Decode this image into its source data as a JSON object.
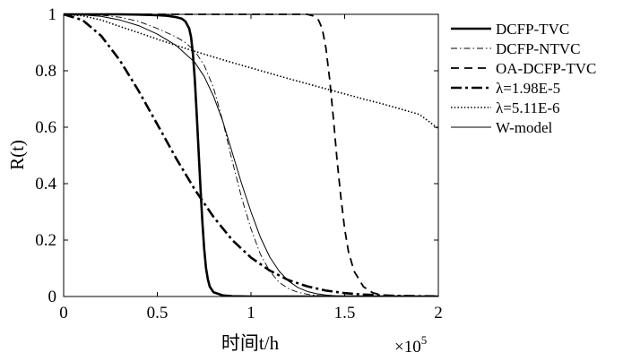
{
  "chart_data": {
    "type": "line",
    "xlabel": "时间t/h",
    "ylabel": "R(t)",
    "x_multiplier_base": "×10",
    "x_multiplier_exp": "5",
    "xlim": [
      0,
      2
    ],
    "ylim": [
      0,
      1
    ],
    "x_ticks": [
      "0",
      "0.5",
      "1",
      "1.5",
      "2"
    ],
    "y_ticks": [
      "0",
      "0.2",
      "0.4",
      "0.6",
      "0.8",
      "1"
    ],
    "legend_position": "outside-right-top",
    "series": [
      {
        "name": "DCFP-TVC",
        "style": "solid-thick",
        "x": [
          0,
          0.1,
          0.2,
          0.3,
          0.4,
          0.5,
          0.55,
          0.6,
          0.63,
          0.65,
          0.67,
          0.68,
          0.69,
          0.7,
          0.71,
          0.72,
          0.73,
          0.74,
          0.75,
          0.76,
          0.77,
          0.78,
          0.8,
          0.85,
          0.9,
          1.0,
          1.2,
          1.5,
          2.0
        ],
        "y": [
          1,
          1,
          1,
          1,
          0.999,
          0.997,
          0.995,
          0.99,
          0.985,
          0.975,
          0.95,
          0.92,
          0.86,
          0.77,
          0.65,
          0.52,
          0.39,
          0.27,
          0.17,
          0.1,
          0.06,
          0.035,
          0.015,
          0.004,
          0.001,
          0,
          0,
          0,
          0
        ]
      },
      {
        "name": "DCFP-NTVC",
        "style": "dashdot-thin",
        "x": [
          0,
          0.1,
          0.2,
          0.3,
          0.4,
          0.5,
          0.6,
          0.65,
          0.7,
          0.75,
          0.8,
          0.85,
          0.9,
          0.95,
          1.0,
          1.05,
          1.1,
          1.15,
          1.2,
          1.25,
          1.3,
          1.35,
          1.4,
          1.5,
          1.6,
          2.0
        ],
        "y": [
          1,
          0.999,
          0.997,
          0.99,
          0.975,
          0.95,
          0.92,
          0.9,
          0.87,
          0.82,
          0.74,
          0.62,
          0.48,
          0.35,
          0.24,
          0.15,
          0.09,
          0.05,
          0.028,
          0.015,
          0.008,
          0.004,
          0.002,
          0.0005,
          0,
          0
        ]
      },
      {
        "name": "OA-DCFP-TVC",
        "style": "dashed",
        "x": [
          0,
          0.2,
          0.4,
          0.6,
          0.8,
          1.0,
          1.2,
          1.3,
          1.33,
          1.36,
          1.38,
          1.4,
          1.42,
          1.44,
          1.46,
          1.48,
          1.5,
          1.52,
          1.55,
          1.6,
          1.65,
          1.7,
          1.75,
          1.8,
          1.9,
          2.0
        ],
        "y": [
          1,
          1,
          1,
          1,
          1,
          1,
          1,
          1,
          0.995,
          0.98,
          0.95,
          0.88,
          0.77,
          0.63,
          0.48,
          0.35,
          0.24,
          0.16,
          0.09,
          0.035,
          0.013,
          0.005,
          0.002,
          0.001,
          0,
          0
        ]
      },
      {
        "name": "λ=1.98E-5",
        "style": "dashdot-thick",
        "x": [
          0,
          0.1,
          0.2,
          0.3,
          0.4,
          0.5,
          0.6,
          0.7,
          0.8,
          0.9,
          1.0,
          1.1,
          1.2,
          1.3,
          1.4,
          1.5,
          1.6,
          1.7,
          1.8,
          1.9,
          2.0
        ],
        "y": [
          1,
          0.98,
          0.924,
          0.837,
          0.729,
          0.61,
          0.49,
          0.379,
          0.282,
          0.2,
          0.138,
          0.092,
          0.058,
          0.036,
          0.021,
          0.012,
          0.007,
          0.004,
          0.002,
          0.001,
          0.0006
        ]
      },
      {
        "name": "λ=5.11E-6",
        "style": "dotted",
        "x": [
          0,
          0.1,
          0.2,
          0.3,
          0.4,
          0.5,
          0.6,
          0.7,
          0.8,
          0.9,
          1.0,
          1.1,
          1.2,
          1.3,
          1.4,
          1.5,
          1.6,
          1.7,
          1.8,
          1.9,
          2.0
        ],
        "y": [
          1,
          0.995,
          0.98,
          0.957,
          0.935,
          0.912,
          0.89,
          0.869,
          0.849,
          0.829,
          0.81,
          0.791,
          0.772,
          0.754,
          0.736,
          0.718,
          0.7,
          0.683,
          0.664,
          0.645,
          0.595
        ]
      },
      {
        "name": "W-model",
        "style": "solid-thin",
        "x": [
          0,
          0.1,
          0.2,
          0.3,
          0.4,
          0.5,
          0.55,
          0.6,
          0.65,
          0.7,
          0.75,
          0.8,
          0.85,
          0.9,
          0.95,
          1.0,
          1.05,
          1.1,
          1.15,
          1.2,
          1.25,
          1.3,
          1.35,
          1.4,
          1.45,
          1.5,
          1.6,
          2.0
        ],
        "y": [
          1,
          0.998,
          0.993,
          0.98,
          0.96,
          0.93,
          0.91,
          0.89,
          0.86,
          0.83,
          0.78,
          0.71,
          0.62,
          0.51,
          0.4,
          0.3,
          0.21,
          0.14,
          0.09,
          0.055,
          0.032,
          0.018,
          0.01,
          0.005,
          0.0025,
          0.0012,
          0.0003,
          0
        ]
      }
    ]
  }
}
